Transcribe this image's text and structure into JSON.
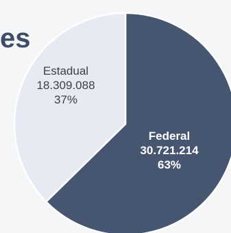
{
  "heading_fragment": "es",
  "colors": {
    "background": "#f5f6f8",
    "heading": "#3d4d66",
    "slice_outline": "#ffffff"
  },
  "chart_data": {
    "type": "pie",
    "title": "",
    "slices": [
      {
        "name": "Federal",
        "value": 30721214,
        "value_label": "30.721.214",
        "percent_label": "63%",
        "color": "#465670",
        "text_color": "#ffffff",
        "label_bold": true
      },
      {
        "name": "Estadual",
        "value": 18309088,
        "value_label": "18.309.088",
        "percent_label": "37%",
        "color": "#e8eaf3",
        "text_color": "#404040",
        "label_bold": false
      }
    ],
    "start_angle_deg": 0,
    "direction": "clockwise",
    "legend": "none"
  }
}
